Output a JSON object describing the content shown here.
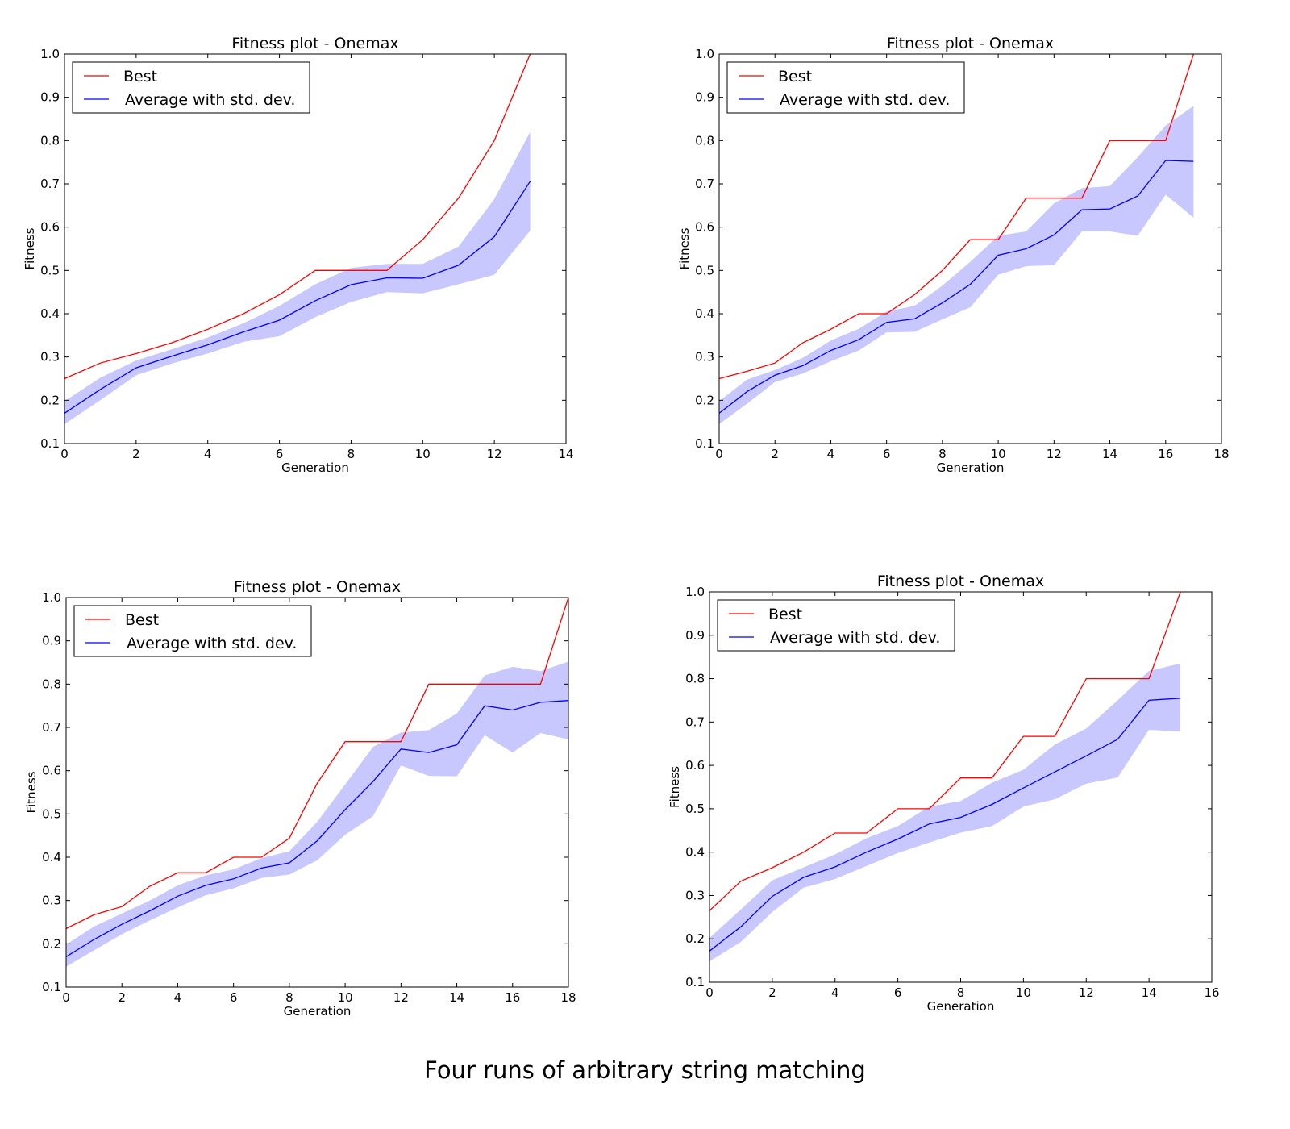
{
  "figure_caption": "Four runs of arbitrary string matching",
  "colors": {
    "best": "#ff0000",
    "average": "#0000ff",
    "std_band": "#c8c8ff"
  },
  "chart_data": [
    {
      "type": "line",
      "title": "Fitness plot - Onemax",
      "xlabel": "Generation",
      "ylabel": "Fitness",
      "xlim": [
        0,
        14
      ],
      "ylim": [
        0.1,
        1.0
      ],
      "xticks": [
        "0",
        "2",
        "4",
        "6",
        "8",
        "10",
        "12",
        "14"
      ],
      "yticks": [
        "0.1",
        "0.2",
        "0.3",
        "0.4",
        "0.5",
        "0.6",
        "0.7",
        "0.8",
        "0.9",
        "1.0"
      ],
      "legend": "top-left",
      "x": [
        0,
        1,
        2,
        3,
        4,
        5,
        6,
        7,
        8,
        9,
        10,
        11,
        12,
        13
      ],
      "series": [
        {
          "name": "Best",
          "values": [
            0.25,
            0.286,
            0.308,
            0.333,
            0.364,
            0.4,
            0.444,
            0.5,
            0.5,
            0.5,
            0.571,
            0.667,
            0.8,
            1.0
          ]
        },
        {
          "name": "Average with std. dev.",
          "values": [
            0.17,
            0.225,
            0.275,
            0.302,
            0.328,
            0.358,
            0.385,
            0.43,
            0.467,
            0.483,
            0.482,
            0.512,
            0.578,
            0.706
          ],
          "lower": [
            0.145,
            0.2,
            0.258,
            0.285,
            0.308,
            0.335,
            0.348,
            0.392,
            0.427,
            0.45,
            0.447,
            0.468,
            0.49,
            0.592
          ],
          "upper": [
            0.198,
            0.252,
            0.292,
            0.318,
            0.345,
            0.378,
            0.418,
            0.468,
            0.506,
            0.515,
            0.515,
            0.555,
            0.665,
            0.82
          ]
        }
      ]
    },
    {
      "type": "line",
      "title": "Fitness plot - Onemax",
      "xlabel": "Generation",
      "ylabel": "Fitness",
      "xlim": [
        0,
        18
      ],
      "ylim": [
        0.1,
        1.0
      ],
      "xticks": [
        "0",
        "2",
        "4",
        "6",
        "8",
        "10",
        "12",
        "14",
        "16",
        "18"
      ],
      "yticks": [
        "0.1",
        "0.2",
        "0.3",
        "0.4",
        "0.5",
        "0.6",
        "0.7",
        "0.8",
        "0.9",
        "1.0"
      ],
      "legend": "top-left",
      "x": [
        0,
        1,
        2,
        3,
        4,
        5,
        6,
        7,
        8,
        9,
        10,
        11,
        12,
        13,
        14,
        15,
        16,
        17
      ],
      "series": [
        {
          "name": "Best",
          "values": [
            0.25,
            0.267,
            0.286,
            0.333,
            0.364,
            0.4,
            0.4,
            0.444,
            0.5,
            0.571,
            0.571,
            0.667,
            0.667,
            0.667,
            0.8,
            0.8,
            0.8,
            1.0
          ]
        },
        {
          "name": "Average with std. dev.",
          "values": [
            0.17,
            0.22,
            0.258,
            0.28,
            0.315,
            0.34,
            0.38,
            0.388,
            0.425,
            0.468,
            0.535,
            0.55,
            0.582,
            0.64,
            0.642,
            0.672,
            0.754,
            0.752
          ],
          "lower": [
            0.145,
            0.192,
            0.242,
            0.262,
            0.29,
            0.315,
            0.357,
            0.358,
            0.387,
            0.415,
            0.49,
            0.51,
            0.512,
            0.59,
            0.59,
            0.58,
            0.675,
            0.622
          ],
          "upper": [
            0.198,
            0.248,
            0.27,
            0.298,
            0.338,
            0.365,
            0.405,
            0.418,
            0.465,
            0.52,
            0.58,
            0.59,
            0.655,
            0.69,
            0.695,
            0.762,
            0.835,
            0.88
          ]
        }
      ]
    },
    {
      "type": "line",
      "title": "Fitness plot - Onemax",
      "xlabel": "Generation",
      "ylabel": "Fitness",
      "xlim": [
        0,
        18
      ],
      "ylim": [
        0.1,
        1.0
      ],
      "xticks": [
        "0",
        "2",
        "4",
        "6",
        "8",
        "10",
        "12",
        "14",
        "16",
        "18"
      ],
      "yticks": [
        "0.1",
        "0.2",
        "0.3",
        "0.4",
        "0.5",
        "0.6",
        "0.7",
        "0.8",
        "0.9",
        "1.0"
      ],
      "legend": "top-left",
      "x": [
        0,
        1,
        2,
        3,
        4,
        5,
        6,
        7,
        8,
        9,
        10,
        11,
        12,
        13,
        14,
        15,
        16,
        17,
        18
      ],
      "series": [
        {
          "name": "Best",
          "values": [
            0.235,
            0.267,
            0.286,
            0.333,
            0.364,
            0.364,
            0.4,
            0.4,
            0.444,
            0.571,
            0.667,
            0.667,
            0.667,
            0.8,
            0.8,
            0.8,
            0.8,
            0.8,
            1.0
          ]
        },
        {
          "name": "Average with std. dev.",
          "values": [
            0.17,
            0.21,
            0.245,
            0.276,
            0.31,
            0.335,
            0.35,
            0.375,
            0.387,
            0.438,
            0.51,
            0.575,
            0.65,
            0.642,
            0.66,
            0.75,
            0.74,
            0.758,
            0.762
          ],
          "lower": [
            0.147,
            0.185,
            0.222,
            0.254,
            0.284,
            0.312,
            0.328,
            0.352,
            0.36,
            0.393,
            0.452,
            0.495,
            0.612,
            0.588,
            0.587,
            0.682,
            0.642,
            0.687,
            0.672
          ],
          "upper": [
            0.198,
            0.24,
            0.27,
            0.3,
            0.335,
            0.358,
            0.372,
            0.398,
            0.414,
            0.482,
            0.568,
            0.655,
            0.688,
            0.694,
            0.732,
            0.82,
            0.84,
            0.83,
            0.852
          ]
        }
      ]
    },
    {
      "type": "line",
      "title": "Fitness plot - Onemax",
      "xlabel": "Generation",
      "ylabel": "Fitness",
      "xlim": [
        0,
        16
      ],
      "ylim": [
        0.1,
        1.0
      ],
      "xticks": [
        "0",
        "2",
        "4",
        "6",
        "8",
        "10",
        "12",
        "14",
        "16"
      ],
      "yticks": [
        "0.1",
        "0.2",
        "0.3",
        "0.4",
        "0.5",
        "0.6",
        "0.7",
        "0.8",
        "0.9",
        "1.0"
      ],
      "legend": "top-left",
      "x": [
        0,
        1,
        2,
        3,
        4,
        5,
        6,
        7,
        8,
        9,
        10,
        11,
        12,
        13,
        14,
        15
      ],
      "series": [
        {
          "name": "Best",
          "values": [
            0.265,
            0.333,
            0.364,
            0.4,
            0.444,
            0.444,
            0.5,
            0.5,
            0.571,
            0.571,
            0.667,
            0.667,
            0.8,
            0.8,
            0.8,
            1.0
          ]
        },
        {
          "name": "Average with std. dev.",
          "values": [
            0.172,
            0.228,
            0.298,
            0.342,
            0.366,
            0.4,
            0.43,
            0.465,
            0.48,
            0.51,
            0.548,
            0.585,
            0.622,
            0.66,
            0.75,
            0.755
          ],
          "lower": [
            0.148,
            0.193,
            0.262,
            0.318,
            0.338,
            0.368,
            0.398,
            0.422,
            0.445,
            0.46,
            0.505,
            0.522,
            0.558,
            0.572,
            0.682,
            0.678
          ],
          "upper": [
            0.202,
            0.268,
            0.335,
            0.365,
            0.395,
            0.432,
            0.46,
            0.505,
            0.518,
            0.56,
            0.59,
            0.648,
            0.685,
            0.75,
            0.818,
            0.835
          ]
        }
      ]
    }
  ]
}
